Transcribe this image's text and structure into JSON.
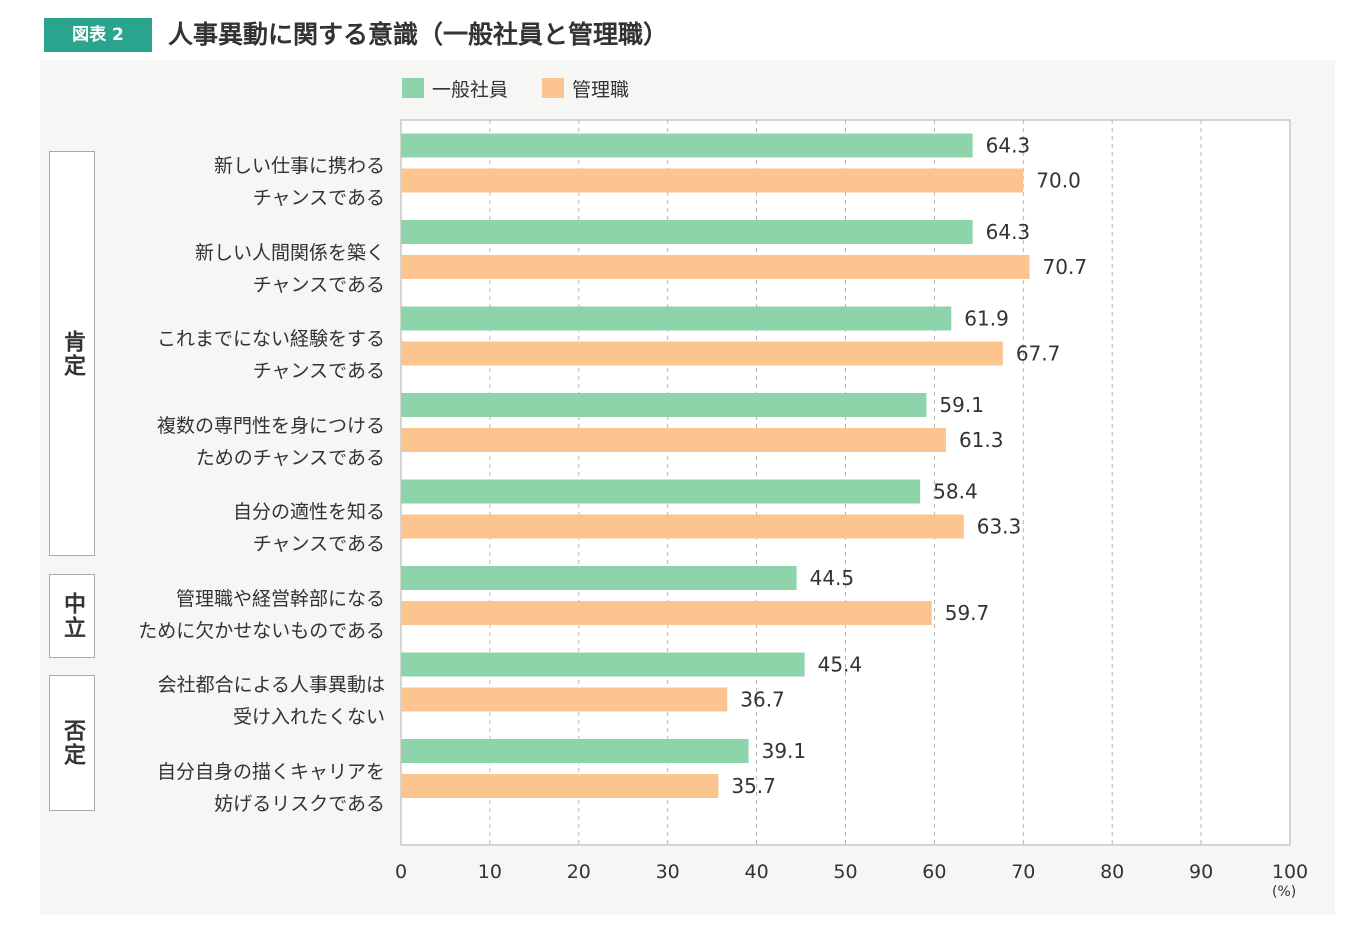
{
  "figure": {
    "badge": "図表 2",
    "title": "人事異動に関する意識（一般社員と管理職）"
  },
  "legend": [
    {
      "label": "一般社員",
      "color": "#8dd4aa"
    },
    {
      "label": "管理職",
      "color": "#fcc48f"
    }
  ],
  "groups": [
    {
      "label": "肯定"
    },
    {
      "label": "中立"
    },
    {
      "label": "否定"
    }
  ],
  "categories": [
    {
      "line1": "新しい仕事に携わる",
      "line2": "チャンスである"
    },
    {
      "line1": "新しい人間関係を築く",
      "line2": "チャンスである"
    },
    {
      "line1": "これまでにない経験をする",
      "line2": "チャンスである"
    },
    {
      "line1": "複数の専門性を身につける",
      "line2": "ためのチャンスである"
    },
    {
      "line1": "自分の適性を知る",
      "line2": "チャンスである"
    },
    {
      "line1": "管理職や経営幹部になる",
      "line2": "ために欠かせないものである"
    },
    {
      "line1": "会社都合による人事異動は",
      "line2": "受け入れたくない"
    },
    {
      "line1": "自分自身の描くキャリアを",
      "line2": "妨げるリスクである"
    }
  ],
  "unit": "(%)",
  "chart_data": {
    "type": "bar",
    "orientation": "horizontal",
    "title": "人事異動に関する意識（一般社員と管理職）",
    "categories": [
      "新しい仕事に携わるチャンスである",
      "新しい人間関係を築くチャンスである",
      "これまでにない経験をするチャンスである",
      "複数の専門性を身につけるためのチャンスである",
      "自分の適性を知るチャンスである",
      "管理職や経営幹部になるために欠かせないものである",
      "会社都合による人事異動は受け入れたくない",
      "自分自身の描くキャリアを妨げるリスクである"
    ],
    "series": [
      {
        "name": "一般社員",
        "color": "#8dd4aa",
        "values": [
          64.3,
          64.3,
          61.9,
          59.1,
          58.4,
          44.5,
          45.4,
          39.1
        ]
      },
      {
        "name": "管理職",
        "color": "#fcc48f",
        "values": [
          70.0,
          70.7,
          67.7,
          61.3,
          63.3,
          59.7,
          36.7,
          35.7
        ]
      }
    ],
    "value_labels": [
      [
        "64.3",
        "64.3",
        "61.9",
        "59.1",
        "58.4",
        "44.5",
        "45.4",
        "39.1"
      ],
      [
        "70.0",
        "70.7",
        "67.7",
        "61.3",
        "63.3",
        "59.7",
        "36.7",
        "35.7"
      ]
    ],
    "xlim": [
      0,
      100
    ],
    "xticks": [
      0,
      10,
      20,
      30,
      40,
      50,
      60,
      70,
      80,
      90,
      100
    ],
    "xlabel": "(%)",
    "grid": "vertical dashed"
  }
}
